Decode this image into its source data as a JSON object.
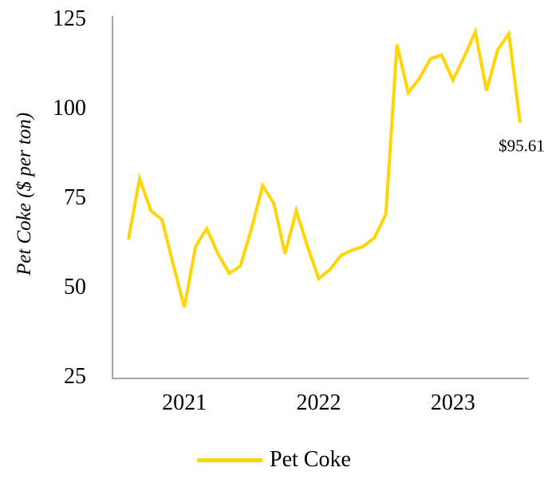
{
  "chart_data": {
    "type": "line",
    "title": "",
    "ylabel": "Pet Coke ($ per ton)",
    "xlabel": "",
    "ylim": [
      25,
      125
    ],
    "yticks": [
      125,
      100,
      75,
      50,
      25
    ],
    "xticks": [
      {
        "label": "2021",
        "index": 5
      },
      {
        "label": "2022",
        "index": 17
      },
      {
        "label": "2023",
        "index": 29
      }
    ],
    "grid": false,
    "legend_position": "bottom-center",
    "series": [
      {
        "name": "Pet Coke",
        "color": "#FFD504",
        "values": [
          63,
          80,
          71,
          68.5,
          56,
          44,
          61,
          66,
          59,
          53.5,
          55.5,
          66,
          78,
          73,
          59,
          71,
          61,
          52,
          54.5,
          58.5,
          60,
          61,
          63.5,
          70,
          117.5,
          104,
          108,
          113.5,
          114.5,
          107.5,
          114,
          121,
          104.5,
          116,
          120.5,
          95.61
        ]
      }
    ],
    "annotation": {
      "text": "$95.61",
      "series_index": 35
    },
    "colors": {
      "axis": "#A6A6A6",
      "text": "#000000",
      "background": "#FFFFFF"
    }
  }
}
